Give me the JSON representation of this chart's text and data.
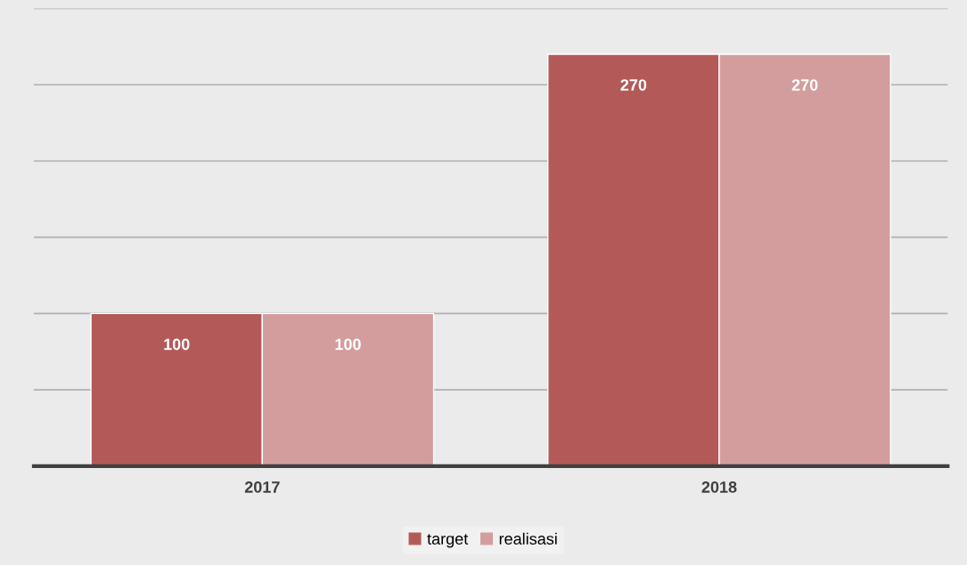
{
  "chart_data": {
    "type": "bar",
    "categories": [
      "2017",
      "2018"
    ],
    "series": [
      {
        "name": "target",
        "color": "#b35a59",
        "values": [
          100,
          270
        ]
      },
      {
        "name": "realisasi",
        "color": "#d49d9d",
        "values": [
          100,
          270
        ]
      }
    ],
    "yticks": [
      {
        "value": 0,
        "label": null
      },
      {
        "value": 50,
        "label": null
      },
      {
        "value": 100,
        "label": null
      },
      {
        "value": 150,
        "label": null
      },
      {
        "value": 200,
        "label": null
      },
      {
        "value": 250,
        "label": null
      },
      {
        "value": 300,
        "label": null
      }
    ],
    "tick_labels": "x",
    "grid": "y",
    "data_labels": true,
    "legend": "bottom"
  }
}
